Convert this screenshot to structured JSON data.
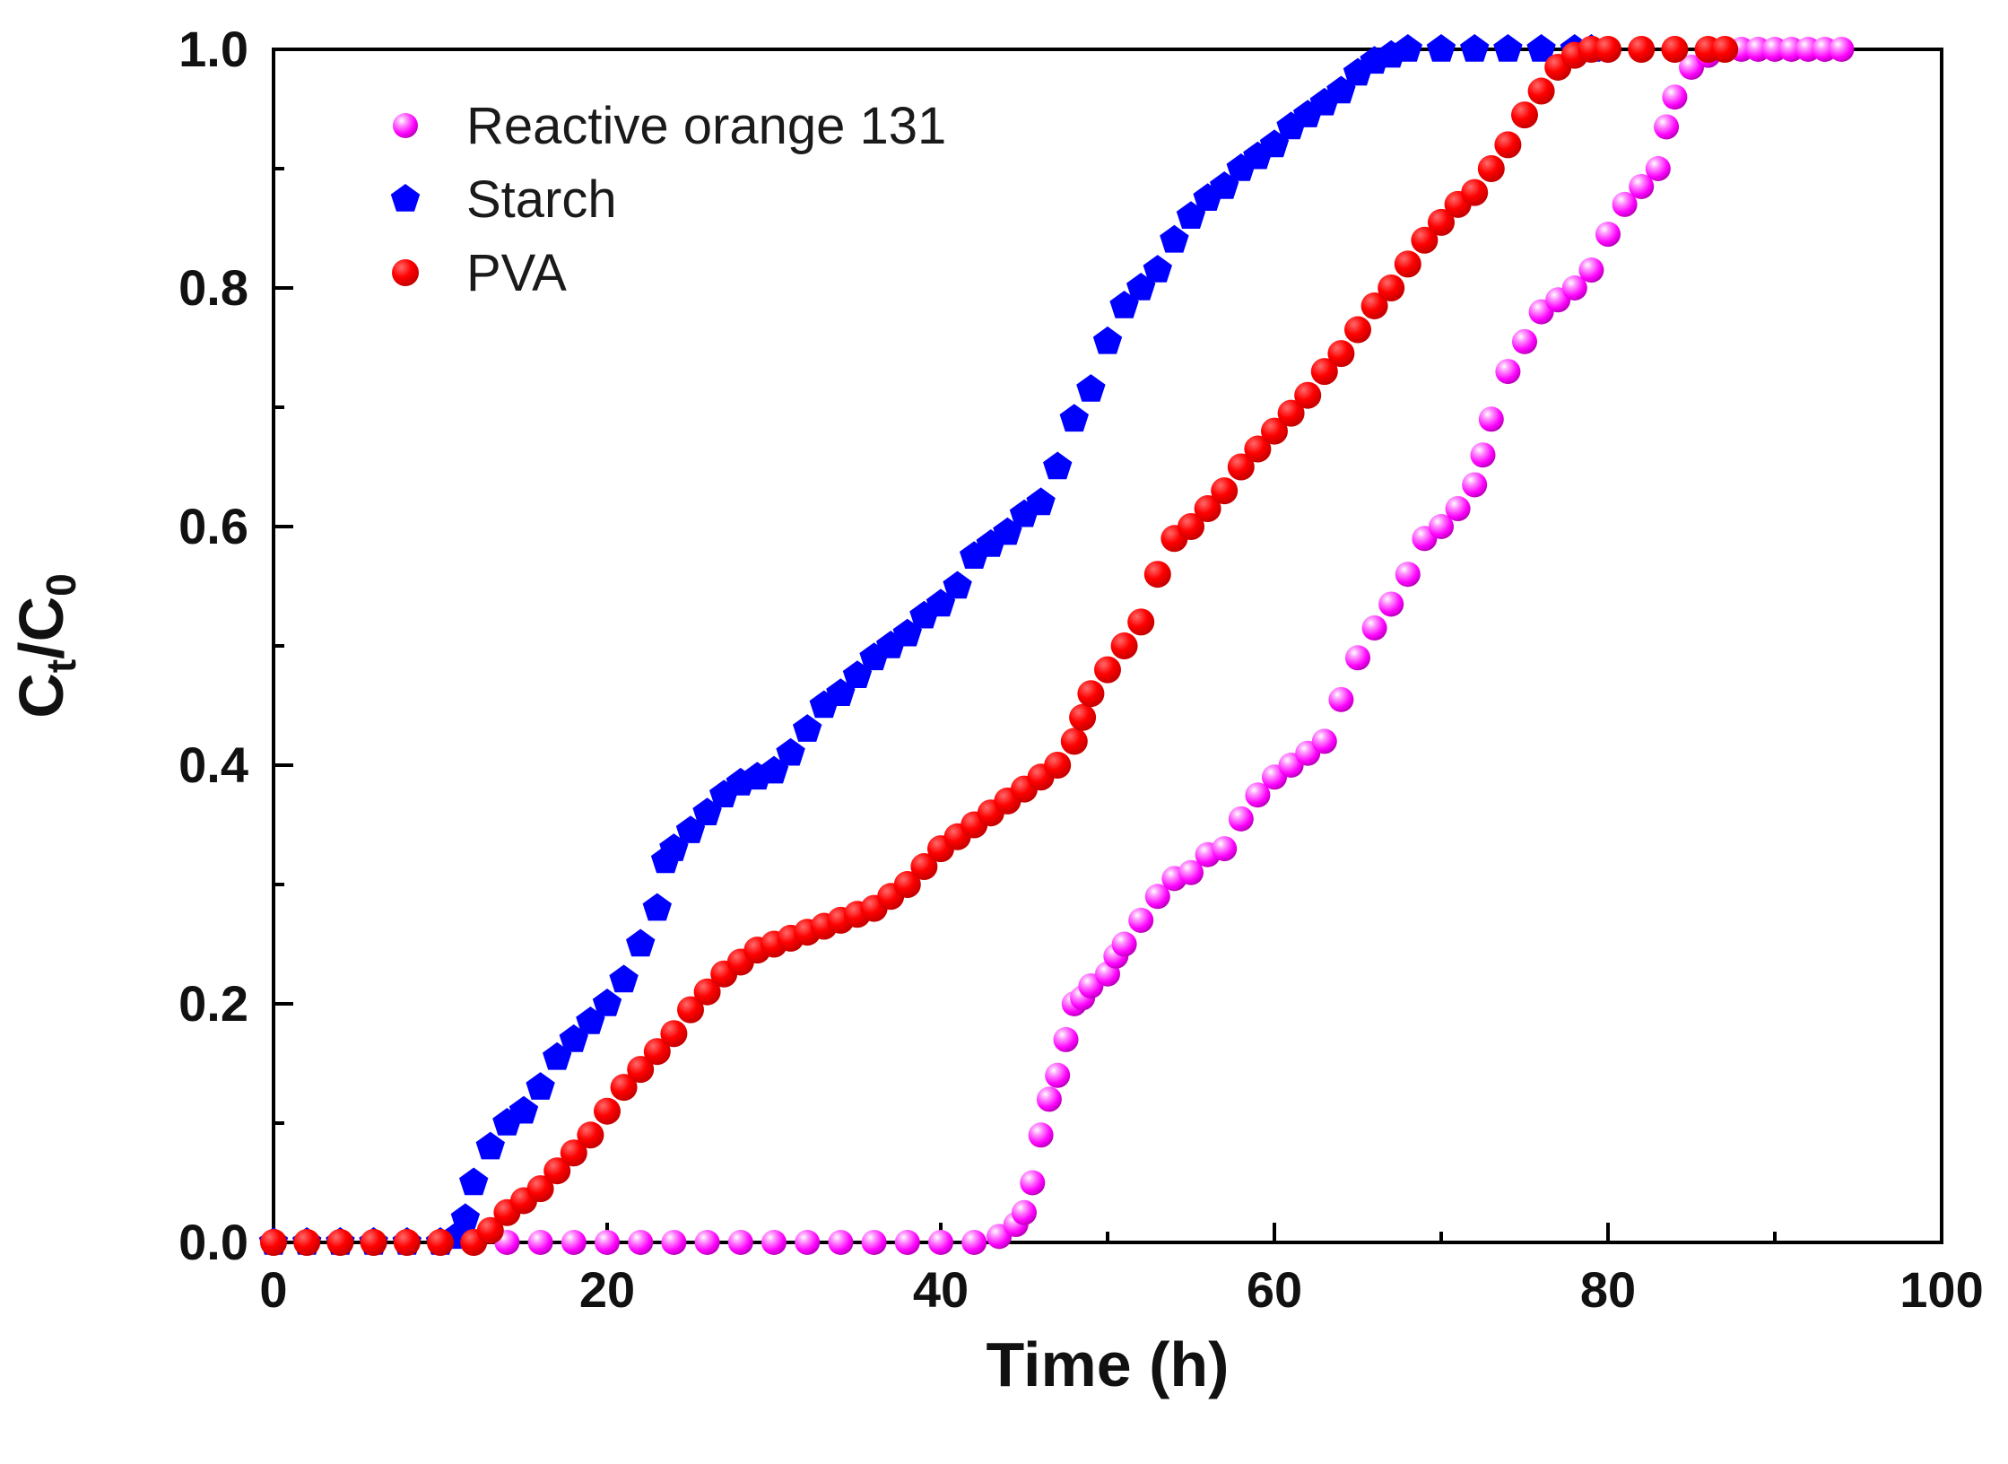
{
  "chart_data": {
    "type": "scatter",
    "title": "",
    "xlabel": "Time (h)",
    "ylabel": "Ct/C0",
    "ylabel_main": "C",
    "ylabel_sub1": "t",
    "ylabel_slash": "/C",
    "ylabel_sub2": "0",
    "xlim": [
      0,
      100
    ],
    "ylim": [
      0,
      1
    ],
    "xticks": [
      0,
      20,
      40,
      60,
      80,
      100
    ],
    "xtick_labels": [
      "0",
      "20",
      "40",
      "60",
      "80",
      "100"
    ],
    "yticks": [
      0,
      0.2,
      0.4,
      0.6,
      0.8,
      1.0
    ],
    "ytick_labels": [
      "0.0",
      "0.2",
      "0.4",
      "0.6",
      "0.8",
      "1.0"
    ],
    "grid": false,
    "legend_position": "top-left",
    "series": [
      {
        "name": "Reactive orange 131",
        "color": "#ff00ff",
        "marker": "sphere",
        "points": [
          [
            0,
            0
          ],
          [
            2,
            0
          ],
          [
            4,
            0
          ],
          [
            6,
            0
          ],
          [
            8,
            0
          ],
          [
            10,
            0
          ],
          [
            12,
            0
          ],
          [
            14,
            0
          ],
          [
            16,
            0
          ],
          [
            18,
            0
          ],
          [
            20,
            0
          ],
          [
            22,
            0
          ],
          [
            24,
            0
          ],
          [
            26,
            0
          ],
          [
            28,
            0
          ],
          [
            30,
            0
          ],
          [
            32,
            0
          ],
          [
            34,
            0
          ],
          [
            36,
            0
          ],
          [
            38,
            0
          ],
          [
            40,
            0
          ],
          [
            42,
            0
          ],
          [
            43.5,
            0.005
          ],
          [
            44.5,
            0.015
          ],
          [
            45,
            0.025
          ],
          [
            45.5,
            0.05
          ],
          [
            46,
            0.09
          ],
          [
            46.5,
            0.12
          ],
          [
            47,
            0.14
          ],
          [
            47.5,
            0.17
          ],
          [
            48,
            0.2
          ],
          [
            48.5,
            0.205
          ],
          [
            49,
            0.215
          ],
          [
            50,
            0.225
          ],
          [
            50.5,
            0.24
          ],
          [
            51,
            0.25
          ],
          [
            52,
            0.27
          ],
          [
            53,
            0.29
          ],
          [
            54,
            0.305
          ],
          [
            55,
            0.31
          ],
          [
            56,
            0.325
          ],
          [
            57,
            0.33
          ],
          [
            58,
            0.355
          ],
          [
            59,
            0.375
          ],
          [
            60,
            0.39
          ],
          [
            61,
            0.4
          ],
          [
            62,
            0.41
          ],
          [
            63,
            0.42
          ],
          [
            64,
            0.455
          ],
          [
            65,
            0.49
          ],
          [
            66,
            0.515
          ],
          [
            67,
            0.535
          ],
          [
            68,
            0.56
          ],
          [
            69,
            0.59
          ],
          [
            70,
            0.6
          ],
          [
            71,
            0.615
          ],
          [
            72,
            0.635
          ],
          [
            72.5,
            0.66
          ],
          [
            73,
            0.69
          ],
          [
            74,
            0.73
          ],
          [
            75,
            0.755
          ],
          [
            76,
            0.78
          ],
          [
            77,
            0.79
          ],
          [
            78,
            0.8
          ],
          [
            79,
            0.815
          ],
          [
            80,
            0.845
          ],
          [
            81,
            0.87
          ],
          [
            82,
            0.885
          ],
          [
            83,
            0.9
          ],
          [
            83.5,
            0.935
          ],
          [
            84,
            0.96
          ],
          [
            85,
            0.985
          ],
          [
            86,
            0.995
          ],
          [
            87,
            1.0
          ],
          [
            88,
            1.0
          ],
          [
            89,
            1.0
          ],
          [
            90,
            1.0
          ],
          [
            91,
            1.0
          ],
          [
            92,
            1.0
          ],
          [
            93,
            1.0
          ],
          [
            94,
            1.0
          ]
        ]
      },
      {
        "name": "Starch",
        "color": "#0000ff",
        "marker": "pentagon",
        "points": [
          [
            0,
            0
          ],
          [
            2,
            0
          ],
          [
            4,
            0
          ],
          [
            6,
            0
          ],
          [
            8,
            0
          ],
          [
            10,
            0
          ],
          [
            11,
            0.005
          ],
          [
            11.5,
            0.02
          ],
          [
            12,
            0.05
          ],
          [
            13,
            0.08
          ],
          [
            14,
            0.1
          ],
          [
            15,
            0.11
          ],
          [
            16,
            0.13
          ],
          [
            17,
            0.155
          ],
          [
            18,
            0.17
          ],
          [
            19,
            0.185
          ],
          [
            20,
            0.2
          ],
          [
            21,
            0.22
          ],
          [
            22,
            0.25
          ],
          [
            23,
            0.28
          ],
          [
            23.5,
            0.32
          ],
          [
            24,
            0.33
          ],
          [
            25,
            0.345
          ],
          [
            26,
            0.36
          ],
          [
            27,
            0.375
          ],
          [
            28,
            0.385
          ],
          [
            29,
            0.39
          ],
          [
            30,
            0.395
          ],
          [
            31,
            0.41
          ],
          [
            32,
            0.43
          ],
          [
            33,
            0.45
          ],
          [
            34,
            0.46
          ],
          [
            35,
            0.475
          ],
          [
            36,
            0.49
          ],
          [
            37,
            0.5
          ],
          [
            38,
            0.51
          ],
          [
            39,
            0.525
          ],
          [
            40,
            0.535
          ],
          [
            41,
            0.55
          ],
          [
            42,
            0.575
          ],
          [
            43,
            0.585
          ],
          [
            44,
            0.595
          ],
          [
            45,
            0.61
          ],
          [
            46,
            0.62
          ],
          [
            47,
            0.65
          ],
          [
            48,
            0.69
          ],
          [
            49,
            0.715
          ],
          [
            50,
            0.755
          ],
          [
            51,
            0.785
          ],
          [
            52,
            0.8
          ],
          [
            53,
            0.815
          ],
          [
            54,
            0.84
          ],
          [
            55,
            0.86
          ],
          [
            56,
            0.875
          ],
          [
            57,
            0.885
          ],
          [
            58,
            0.9
          ],
          [
            59,
            0.91
          ],
          [
            60,
            0.92
          ],
          [
            61,
            0.935
          ],
          [
            62,
            0.945
          ],
          [
            63,
            0.955
          ],
          [
            64,
            0.965
          ],
          [
            65,
            0.98
          ],
          [
            66,
            0.99
          ],
          [
            67,
            0.995
          ],
          [
            68,
            1.0
          ],
          [
            70,
            1.0
          ],
          [
            72,
            1.0
          ],
          [
            74,
            1.0
          ],
          [
            76,
            1.0
          ],
          [
            78,
            1.0
          ],
          [
            79,
            1.0
          ]
        ]
      },
      {
        "name": "PVA",
        "color": "#ff0000",
        "marker": "circle",
        "points": [
          [
            0,
            0
          ],
          [
            2,
            0
          ],
          [
            4,
            0
          ],
          [
            6,
            0
          ],
          [
            8,
            0
          ],
          [
            10,
            0
          ],
          [
            12,
            0
          ],
          [
            13,
            0.01
          ],
          [
            14,
            0.025
          ],
          [
            15,
            0.035
          ],
          [
            16,
            0.045
          ],
          [
            17,
            0.06
          ],
          [
            18,
            0.075
          ],
          [
            19,
            0.09
          ],
          [
            20,
            0.11
          ],
          [
            21,
            0.13
          ],
          [
            22,
            0.145
          ],
          [
            23,
            0.16
          ],
          [
            24,
            0.175
          ],
          [
            25,
            0.195
          ],
          [
            26,
            0.21
          ],
          [
            27,
            0.225
          ],
          [
            28,
            0.235
          ],
          [
            29,
            0.245
          ],
          [
            30,
            0.25
          ],
          [
            31,
            0.255
          ],
          [
            32,
            0.26
          ],
          [
            33,
            0.265
          ],
          [
            34,
            0.27
          ],
          [
            35,
            0.275
          ],
          [
            36,
            0.28
          ],
          [
            37,
            0.29
          ],
          [
            38,
            0.3
          ],
          [
            39,
            0.315
          ],
          [
            40,
            0.33
          ],
          [
            41,
            0.34
          ],
          [
            42,
            0.35
          ],
          [
            43,
            0.36
          ],
          [
            44,
            0.37
          ],
          [
            45,
            0.38
          ],
          [
            46,
            0.39
          ],
          [
            47,
            0.4
          ],
          [
            48,
            0.42
          ],
          [
            48.5,
            0.44
          ],
          [
            49,
            0.46
          ],
          [
            50,
            0.48
          ],
          [
            51,
            0.5
          ],
          [
            52,
            0.52
          ],
          [
            53,
            0.56
          ],
          [
            54,
            0.59
          ],
          [
            55,
            0.6
          ],
          [
            56,
            0.615
          ],
          [
            57,
            0.63
          ],
          [
            58,
            0.65
          ],
          [
            59,
            0.665
          ],
          [
            60,
            0.68
          ],
          [
            61,
            0.695
          ],
          [
            62,
            0.71
          ],
          [
            63,
            0.73
          ],
          [
            64,
            0.745
          ],
          [
            65,
            0.765
          ],
          [
            66,
            0.785
          ],
          [
            67,
            0.8
          ],
          [
            68,
            0.82
          ],
          [
            69,
            0.84
          ],
          [
            70,
            0.855
          ],
          [
            71,
            0.87
          ],
          [
            72,
            0.88
          ],
          [
            73,
            0.9
          ],
          [
            74,
            0.92
          ],
          [
            75,
            0.945
          ],
          [
            76,
            0.965
          ],
          [
            77,
            0.985
          ],
          [
            78,
            0.995
          ],
          [
            79,
            1.0
          ],
          [
            80,
            1.0
          ],
          [
            82,
            1.0
          ],
          [
            84,
            1.0
          ],
          [
            86,
            1.0
          ],
          [
            87,
            1.0
          ]
        ]
      }
    ]
  }
}
